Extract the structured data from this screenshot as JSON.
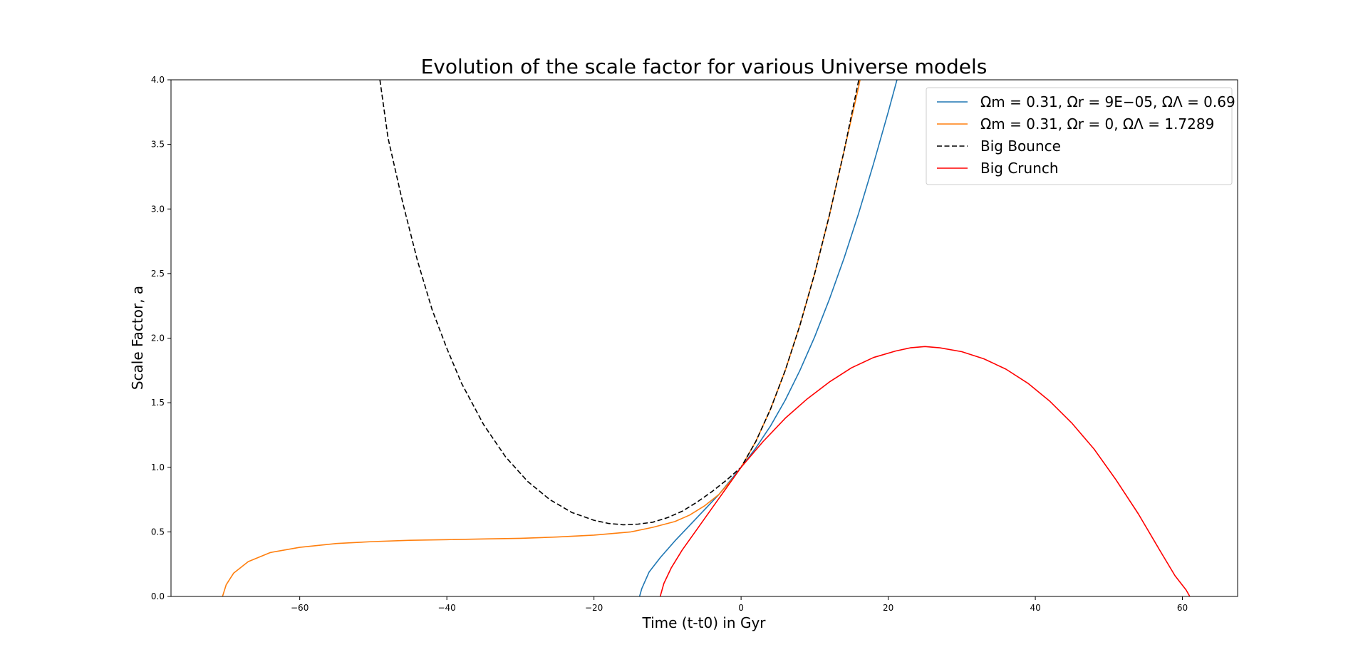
{
  "chart_data": {
    "type": "line",
    "title": "Evolution of the scale factor for various Universe models",
    "xlabel": "Time (t-t0) in Gyr",
    "ylabel": "Scale Factor, a",
    "xlim": [
      -77.5,
      67.5
    ],
    "ylim": [
      0,
      4.0
    ],
    "x_ticks": [
      -60,
      -40,
      -20,
      0,
      20,
      40,
      60
    ],
    "x_tick_labels": [
      "−60",
      "−40",
      "−20",
      "0",
      "20",
      "40",
      "60"
    ],
    "y_ticks": [
      0,
      0.5,
      1.0,
      1.5,
      2.0,
      2.5,
      3.0,
      3.5,
      4.0
    ],
    "y_tick_labels": [
      "0.0",
      "0.5",
      "1.0",
      "1.5",
      "2.0",
      "2.5",
      "3.0",
      "3.5",
      "4.0"
    ],
    "grid": false,
    "legend_position": "top-right",
    "series": [
      {
        "name": "Ωm = 0.31, Ωr = 9E−05, ΩΛ = 0.69",
        "color": "#1f77b4",
        "style": "solid",
        "x": [
          -13.8,
          -13.5,
          -12.5,
          -11,
          -9,
          -7,
          -5,
          -3,
          -1,
          0,
          2,
          4,
          6,
          8,
          10,
          12,
          14,
          16,
          18,
          20,
          22,
          22.8
        ],
        "y": [
          0,
          0.06,
          0.19,
          0.3,
          0.43,
          0.55,
          0.67,
          0.79,
          0.93,
          1.0,
          1.15,
          1.32,
          1.52,
          1.75,
          2.01,
          2.3,
          2.62,
          2.97,
          3.35,
          3.75,
          4.17,
          4.35
        ]
      },
      {
        "name": "Ωm = 0.31, Ωr = 0, ΩΛ = 1.7289",
        "color": "#ff7f0e",
        "style": "solid",
        "x": [
          -70.5,
          -70,
          -69,
          -67,
          -64,
          -60,
          -55,
          -50,
          -45,
          -40,
          -35,
          -30,
          -25,
          -20,
          -15,
          -12,
          -9,
          -7,
          -5,
          -3,
          -1,
          0,
          2,
          4,
          6,
          8,
          10,
          12,
          14,
          16,
          16.5
        ],
        "y": [
          0,
          0.09,
          0.18,
          0.27,
          0.34,
          0.38,
          0.41,
          0.425,
          0.435,
          0.44,
          0.445,
          0.45,
          0.46,
          0.475,
          0.5,
          0.535,
          0.58,
          0.63,
          0.7,
          0.79,
          0.92,
          1.0,
          1.2,
          1.45,
          1.75,
          2.1,
          2.5,
          2.95,
          3.45,
          3.95,
          4.1
        ]
      },
      {
        "name": "Big Bounce",
        "color": "#000000",
        "style": "dashed",
        "x": [
          -49.1,
          -48,
          -46,
          -44,
          -42,
          -40,
          -38,
          -35,
          -32,
          -29,
          -26,
          -23,
          -20,
          -18,
          -16,
          -14,
          -12,
          -10,
          -8,
          -6,
          -4,
          -2,
          0,
          2,
          4,
          6,
          8,
          10,
          12,
          14,
          16
        ],
        "y": [
          4.0,
          3.55,
          3.05,
          2.6,
          2.22,
          1.92,
          1.65,
          1.33,
          1.08,
          0.89,
          0.75,
          0.65,
          0.59,
          0.565,
          0.555,
          0.56,
          0.575,
          0.61,
          0.66,
          0.73,
          0.81,
          0.9,
          1.0,
          1.2,
          1.45,
          1.75,
          2.1,
          2.5,
          2.95,
          3.45,
          4.0
        ]
      },
      {
        "name": "Big Crunch",
        "color": "#ff0000",
        "style": "solid",
        "x": [
          -11,
          -10.5,
          -9.5,
          -8,
          -6,
          -4,
          -2,
          0,
          3,
          6,
          9,
          12,
          15,
          18,
          21,
          23,
          25,
          27,
          30,
          33,
          36,
          39,
          42,
          45,
          48,
          51,
          54,
          57,
          59,
          60.5,
          61
        ],
        "y": [
          0,
          0.1,
          0.22,
          0.36,
          0.52,
          0.68,
          0.84,
          1.0,
          1.2,
          1.38,
          1.53,
          1.66,
          1.77,
          1.85,
          1.9,
          1.925,
          1.935,
          1.925,
          1.895,
          1.84,
          1.76,
          1.65,
          1.51,
          1.34,
          1.14,
          0.9,
          0.64,
          0.35,
          0.16,
          0.05,
          0
        ]
      }
    ]
  }
}
